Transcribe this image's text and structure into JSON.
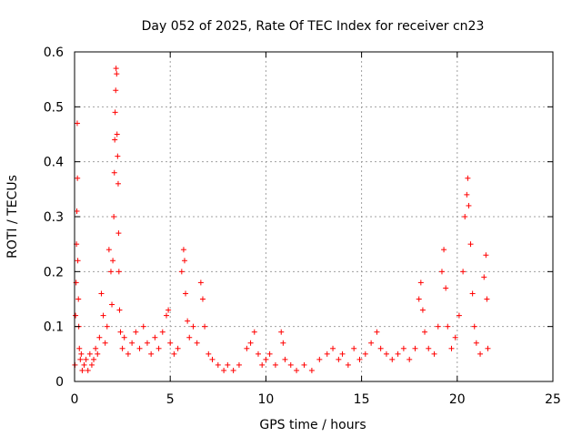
{
  "chart_data": {
    "type": "scatter",
    "title": "Day 052 of 2025, Rate Of TEC Index for receiver cn23",
    "xlabel": "GPS time / hours",
    "ylabel": "ROTI / TECUs",
    "xlim": [
      0,
      25
    ],
    "ylim": [
      0,
      0.6
    ],
    "x_ticks": [
      0,
      5,
      10,
      15,
      20,
      25
    ],
    "y_ticks": [
      0,
      0.1,
      0.2,
      0.3,
      0.4,
      0.5,
      0.6
    ],
    "grid": true,
    "marker": "+",
    "point_color": "#ff0000",
    "series": [
      {
        "points": [
          [
            0.02,
            0.03
          ],
          [
            0.05,
            0.12
          ],
          [
            0.08,
            0.18
          ],
          [
            0.1,
            0.25
          ],
          [
            0.12,
            0.31
          ],
          [
            0.14,
            0.47
          ],
          [
            0.15,
            0.37
          ],
          [
            0.17,
            0.22
          ],
          [
            0.2,
            0.15
          ],
          [
            0.22,
            0.1
          ],
          [
            0.25,
            0.06
          ],
          [
            0.3,
            0.04
          ],
          [
            0.35,
            0.05
          ],
          [
            0.4,
            0.02
          ],
          [
            0.5,
            0.03
          ],
          [
            0.6,
            0.04
          ],
          [
            0.7,
            0.02
          ],
          [
            0.8,
            0.05
          ],
          [
            0.9,
            0.03
          ],
          [
            1.0,
            0.04
          ],
          [
            1.1,
            0.06
          ],
          [
            1.2,
            0.05
          ],
          [
            1.3,
            0.08
          ],
          [
            1.4,
            0.16
          ],
          [
            1.5,
            0.12
          ],
          [
            1.6,
            0.07
          ],
          [
            1.7,
            0.1
          ],
          [
            1.8,
            0.24
          ],
          [
            1.9,
            0.2
          ],
          [
            1.95,
            0.14
          ],
          [
            2.0,
            0.22
          ],
          [
            2.05,
            0.3
          ],
          [
            2.08,
            0.38
          ],
          [
            2.1,
            0.44
          ],
          [
            2.12,
            0.49
          ],
          [
            2.15,
            0.53
          ],
          [
            2.17,
            0.57
          ],
          [
            2.2,
            0.56
          ],
          [
            2.22,
            0.45
          ],
          [
            2.25,
            0.41
          ],
          [
            2.28,
            0.36
          ],
          [
            2.3,
            0.27
          ],
          [
            2.32,
            0.2
          ],
          [
            2.35,
            0.13
          ],
          [
            2.4,
            0.09
          ],
          [
            2.5,
            0.06
          ],
          [
            2.6,
            0.08
          ],
          [
            2.8,
            0.05
          ],
          [
            3.0,
            0.07
          ],
          [
            3.2,
            0.09
          ],
          [
            3.4,
            0.06
          ],
          [
            3.6,
            0.1
          ],
          [
            3.8,
            0.07
          ],
          [
            4.0,
            0.05
          ],
          [
            4.2,
            0.08
          ],
          [
            4.4,
            0.06
          ],
          [
            4.6,
            0.09
          ],
          [
            4.8,
            0.12
          ],
          [
            4.9,
            0.13
          ],
          [
            5.0,
            0.07
          ],
          [
            5.2,
            0.05
          ],
          [
            5.4,
            0.06
          ],
          [
            5.6,
            0.2
          ],
          [
            5.7,
            0.24
          ],
          [
            5.75,
            0.22
          ],
          [
            5.8,
            0.16
          ],
          [
            5.9,
            0.11
          ],
          [
            6.0,
            0.08
          ],
          [
            6.2,
            0.1
          ],
          [
            6.4,
            0.07
          ],
          [
            6.6,
            0.18
          ],
          [
            6.7,
            0.15
          ],
          [
            6.8,
            0.1
          ],
          [
            7.0,
            0.05
          ],
          [
            7.2,
            0.04
          ],
          [
            7.5,
            0.03
          ],
          [
            7.8,
            0.02
          ],
          [
            8.0,
            0.03
          ],
          [
            8.3,
            0.02
          ],
          [
            8.6,
            0.03
          ],
          [
            9.0,
            0.06
          ],
          [
            9.2,
            0.07
          ],
          [
            9.4,
            0.09
          ],
          [
            9.6,
            0.05
          ],
          [
            9.8,
            0.03
          ],
          [
            10.0,
            0.04
          ],
          [
            10.2,
            0.05
          ],
          [
            10.5,
            0.03
          ],
          [
            10.8,
            0.09
          ],
          [
            10.9,
            0.07
          ],
          [
            11.0,
            0.04
          ],
          [
            11.3,
            0.03
          ],
          [
            11.6,
            0.02
          ],
          [
            12.0,
            0.03
          ],
          [
            12.4,
            0.02
          ],
          [
            12.8,
            0.04
          ],
          [
            13.2,
            0.05
          ],
          [
            13.5,
            0.06
          ],
          [
            13.8,
            0.04
          ],
          [
            14.0,
            0.05
          ],
          [
            14.3,
            0.03
          ],
          [
            14.6,
            0.06
          ],
          [
            14.9,
            0.04
          ],
          [
            15.2,
            0.05
          ],
          [
            15.5,
            0.07
          ],
          [
            15.8,
            0.09
          ],
          [
            16.0,
            0.06
          ],
          [
            16.3,
            0.05
          ],
          [
            16.6,
            0.04
          ],
          [
            16.9,
            0.05
          ],
          [
            17.2,
            0.06
          ],
          [
            17.5,
            0.04
          ],
          [
            17.8,
            0.06
          ],
          [
            18.0,
            0.15
          ],
          [
            18.1,
            0.18
          ],
          [
            18.2,
            0.13
          ],
          [
            18.3,
            0.09
          ],
          [
            18.5,
            0.06
          ],
          [
            18.8,
            0.05
          ],
          [
            19.0,
            0.1
          ],
          [
            19.2,
            0.2
          ],
          [
            19.3,
            0.24
          ],
          [
            19.4,
            0.17
          ],
          [
            19.5,
            0.1
          ],
          [
            19.7,
            0.06
          ],
          [
            19.9,
            0.08
          ],
          [
            20.1,
            0.12
          ],
          [
            20.3,
            0.2
          ],
          [
            20.4,
            0.3
          ],
          [
            20.5,
            0.34
          ],
          [
            20.55,
            0.37
          ],
          [
            20.6,
            0.32
          ],
          [
            20.7,
            0.25
          ],
          [
            20.8,
            0.16
          ],
          [
            20.9,
            0.1
          ],
          [
            21.0,
            0.07
          ],
          [
            21.2,
            0.05
          ],
          [
            21.4,
            0.19
          ],
          [
            21.5,
            0.23
          ],
          [
            21.55,
            0.15
          ],
          [
            21.6,
            0.06
          ]
        ]
      }
    ]
  }
}
